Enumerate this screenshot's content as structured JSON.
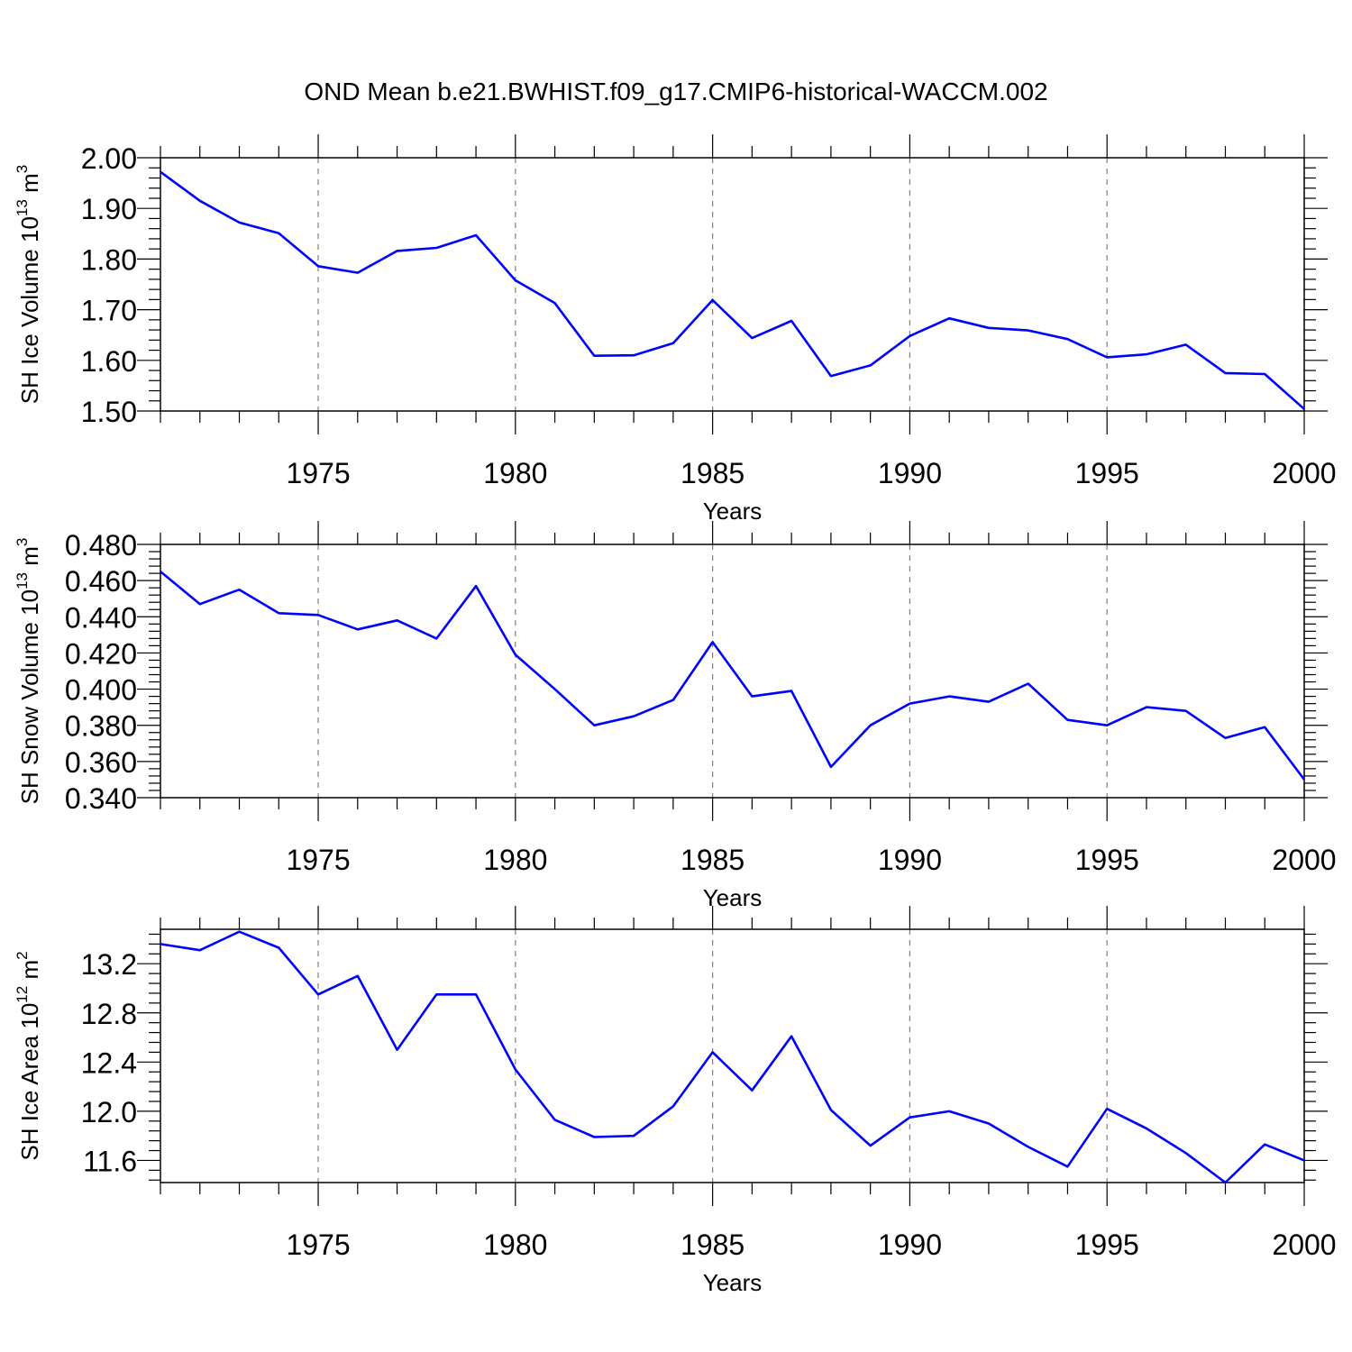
{
  "title": "OND Mean b.e21.BWHIST.f09_g17.CMIP6-historical-WACCM.002",
  "colors": {
    "line": "#0000ff",
    "axis": "#000000",
    "grid": "#808080"
  },
  "chart_data": [
    {
      "type": "line",
      "xlabel": "Years",
      "ylabel": {
        "text": "SH Ice Volume 10",
        "sup": "13",
        "unit": "m",
        "unit_sup": "3"
      },
      "xlim": [
        1971,
        2000
      ],
      "ylim": [
        1.5,
        2.0
      ],
      "x_ticks": [
        1975,
        1980,
        1985,
        1990,
        1995,
        2000
      ],
      "y_ticks": [
        "1.50",
        "1.60",
        "1.70",
        "1.80",
        "1.90",
        "2.00"
      ],
      "grid": "vertical-dashed",
      "series": [
        {
          "x": [
            1971,
            1972,
            1973,
            1974,
            1975,
            1976,
            1977,
            1978,
            1979,
            1980,
            1981,
            1982,
            1983,
            1984,
            1985,
            1986,
            1987,
            1988,
            1989,
            1990,
            1991,
            1992,
            1993,
            1994,
            1995,
            1996,
            1997,
            1998,
            1999,
            2000
          ],
          "values": [
            1.972,
            1.915,
            1.872,
            1.851,
            1.786,
            1.773,
            1.816,
            1.822,
            1.847,
            1.758,
            1.713,
            1.609,
            1.61,
            1.634,
            1.719,
            1.644,
            1.678,
            1.569,
            1.59,
            1.648,
            1.683,
            1.664,
            1.659,
            1.642,
            1.606,
            1.612,
            1.631,
            1.575,
            1.573,
            1.504
          ]
        }
      ]
    },
    {
      "type": "line",
      "xlabel": "Years",
      "ylabel": {
        "text": "SH Snow Volume 10",
        "sup": "13",
        "unit": "m",
        "unit_sup": "3"
      },
      "xlim": [
        1971,
        2000
      ],
      "ylim": [
        0.34,
        0.48
      ],
      "x_ticks": [
        1975,
        1980,
        1985,
        1990,
        1995,
        2000
      ],
      "y_ticks": [
        "0.340",
        "0.360",
        "0.380",
        "0.400",
        "0.420",
        "0.440",
        "0.460",
        "0.480"
      ],
      "grid": "vertical-dashed",
      "series": [
        {
          "x": [
            1971,
            1972,
            1973,
            1974,
            1975,
            1976,
            1977,
            1978,
            1979,
            1980,
            1981,
            1982,
            1983,
            1984,
            1985,
            1986,
            1987,
            1988,
            1989,
            1990,
            1991,
            1992,
            1993,
            1994,
            1995,
            1996,
            1997,
            1998,
            1999,
            2000
          ],
          "values": [
            0.465,
            0.447,
            0.455,
            0.442,
            0.441,
            0.433,
            0.438,
            0.428,
            0.457,
            0.419,
            0.4,
            0.38,
            0.385,
            0.394,
            0.426,
            0.396,
            0.399,
            0.357,
            0.38,
            0.392,
            0.396,
            0.393,
            0.403,
            0.383,
            0.38,
            0.39,
            0.388,
            0.373,
            0.379,
            0.35
          ]
        }
      ]
    },
    {
      "type": "line",
      "xlabel": "Years",
      "ylabel": {
        "text": "SH Ice Area 10",
        "sup": "12",
        "unit": "m",
        "unit_sup": "2"
      },
      "xlim": [
        1971,
        2000
      ],
      "ylim": [
        11.42,
        13.48
      ],
      "x_ticks": [
        1975,
        1980,
        1985,
        1990,
        1995,
        2000
      ],
      "y_ticks": [
        "11.6",
        "12.0",
        "12.4",
        "12.8",
        "13.2"
      ],
      "grid": "vertical-dashed",
      "series": [
        {
          "x": [
            1971,
            1972,
            1973,
            1974,
            1975,
            1976,
            1977,
            1978,
            1979,
            1980,
            1981,
            1982,
            1983,
            1984,
            1985,
            1986,
            1987,
            1988,
            1989,
            1990,
            1991,
            1992,
            1993,
            1994,
            1995,
            1996,
            1997,
            1998,
            1999,
            2000
          ],
          "values": [
            13.36,
            13.31,
            13.46,
            13.33,
            12.95,
            13.1,
            12.5,
            12.95,
            12.95,
            12.34,
            11.93,
            11.79,
            11.8,
            12.04,
            12.48,
            12.17,
            12.61,
            12.01,
            11.72,
            11.95,
            12.0,
            11.9,
            11.71,
            11.55,
            12.02,
            11.86,
            11.66,
            11.42,
            11.73,
            11.6
          ]
        }
      ]
    }
  ]
}
